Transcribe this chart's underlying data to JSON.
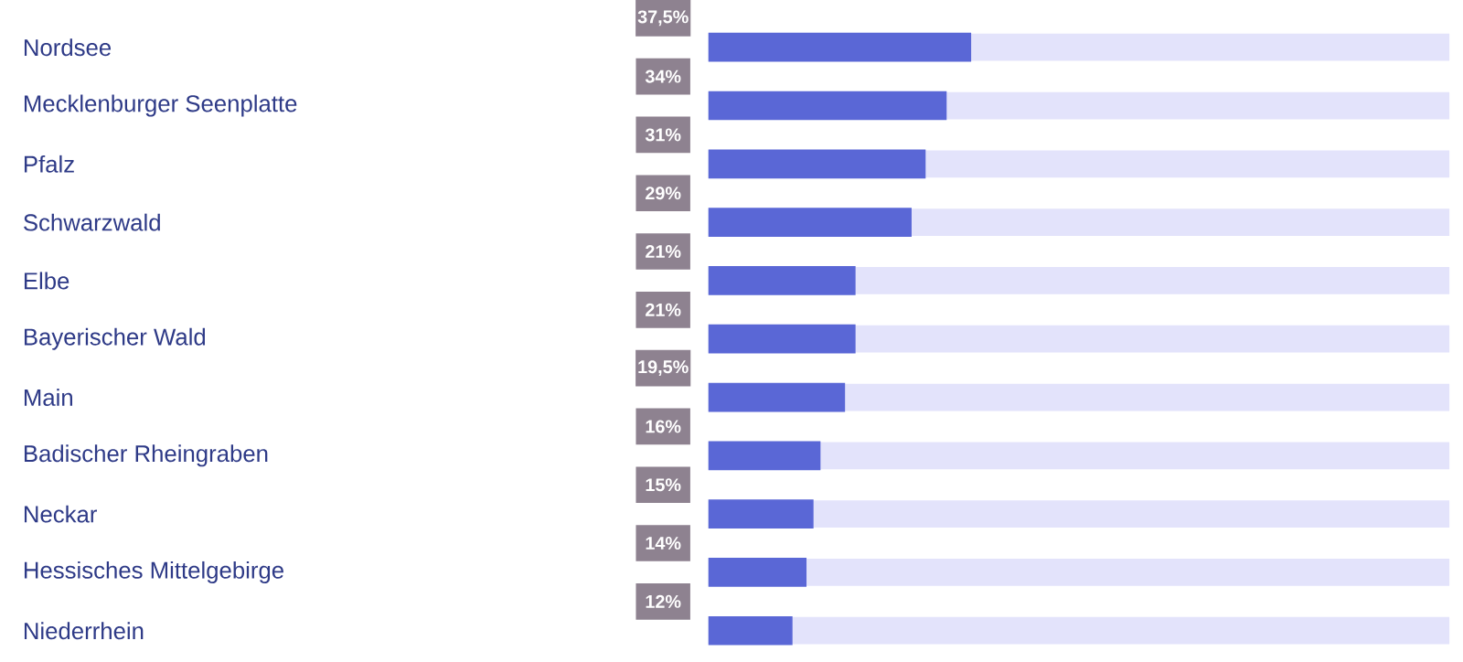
{
  "chart_data": {
    "type": "bar",
    "orientation": "horizontal",
    "categories": [
      "Nordsee",
      "Mecklenburger Seenplatte",
      "Pfalz",
      "Schwarzwald",
      "Elbe",
      "Bayerischer Wald",
      "Main",
      "Badischer Rheingraben",
      "Neckar",
      "Hessisches Mittelgebirge",
      "Niederrhein"
    ],
    "values": [
      37.5,
      34,
      31,
      29,
      21,
      21,
      19.5,
      16,
      15,
      14,
      12
    ],
    "value_labels": [
      "37,5%",
      "34%",
      "31%",
      "29%",
      "21%",
      "21%",
      "19,5%",
      "16%",
      "15%",
      "14%",
      "12%"
    ],
    "color": "#5a67d6",
    "grid": "y"
  }
}
